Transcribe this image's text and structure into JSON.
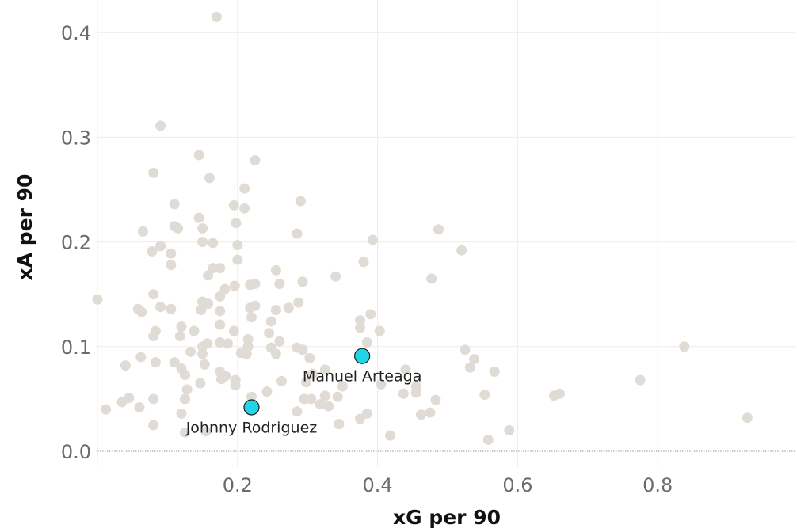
{
  "chart_data": {
    "type": "scatter",
    "xlabel": "xG per 90",
    "ylabel": "xA per 90",
    "xlim": [
      0.0,
      0.98
    ],
    "ylim": [
      -0.015,
      0.43
    ],
    "x_ticks": [
      {
        "value": 0.2,
        "label": "0.2"
      },
      {
        "value": 0.4,
        "label": "0.4"
      },
      {
        "value": 0.6,
        "label": "0.6"
      },
      {
        "value": 0.8,
        "label": "0.8"
      }
    ],
    "y_ticks": [
      {
        "value": 0.0,
        "label": "0.0"
      },
      {
        "value": 0.1,
        "label": "0.1"
      },
      {
        "value": 0.2,
        "label": "0.2"
      },
      {
        "value": 0.3,
        "label": "0.3"
      },
      {
        "value": 0.4,
        "label": "0.4"
      }
    ],
    "grid": true,
    "zero_line": true,
    "colors": {
      "background_points": "#e0dbd5",
      "highlight": "#1fd5e6",
      "highlight_outline": "#1a1a1a",
      "grid": "#ececec"
    },
    "background_points": [
      [
        0.17,
        0.415
      ],
      [
        0.09,
        0.311
      ],
      [
        0.145,
        0.283
      ],
      [
        0.225,
        0.278
      ],
      [
        0.08,
        0.266
      ],
      [
        0.16,
        0.261
      ],
      [
        0.21,
        0.251
      ],
      [
        0.29,
        0.239
      ],
      [
        0.11,
        0.236
      ],
      [
        0.195,
        0.235
      ],
      [
        0.21,
        0.232
      ],
      [
        0.145,
        0.223
      ],
      [
        0.198,
        0.218
      ],
      [
        0.11,
        0.215
      ],
      [
        0.15,
        0.213
      ],
      [
        0.115,
        0.213
      ],
      [
        0.065,
        0.21
      ],
      [
        0.285,
        0.208
      ],
      [
        0.15,
        0.2
      ],
      [
        0.165,
        0.199
      ],
      [
        0.09,
        0.196
      ],
      [
        0.2,
        0.197
      ],
      [
        0.078,
        0.191
      ],
      [
        0.105,
        0.189
      ],
      [
        0.105,
        0.178
      ],
      [
        0.2,
        0.183
      ],
      [
        0.165,
        0.175
      ],
      [
        0.175,
        0.175
      ],
      [
        0.158,
        0.168
      ],
      [
        0.255,
        0.173
      ],
      [
        0.34,
        0.167
      ],
      [
        0.26,
        0.16
      ],
      [
        0.293,
        0.162
      ],
      [
        0.218,
        0.159
      ],
      [
        0.225,
        0.16
      ],
      [
        0.196,
        0.158
      ],
      [
        0.182,
        0.155
      ],
      [
        0.175,
        0.148
      ],
      [
        0.08,
        0.15
      ],
      [
        0.15,
        0.143
      ],
      [
        0.158,
        0.141
      ],
      [
        0.287,
        0.142
      ],
      [
        0.273,
        0.137
      ],
      [
        0.225,
        0.139
      ],
      [
        0.218,
        0.137
      ],
      [
        0.255,
        0.135
      ],
      [
        0.175,
        0.134
      ],
      [
        0.058,
        0.136
      ],
      [
        0.063,
        0.133
      ],
      [
        0.09,
        0.138
      ],
      [
        0.105,
        0.136
      ],
      [
        0.0,
        0.145
      ],
      [
        0.148,
        0.135
      ],
      [
        0.248,
        0.124
      ],
      [
        0.22,
        0.128
      ],
      [
        0.195,
        0.115
      ],
      [
        0.175,
        0.121
      ],
      [
        0.083,
        0.115
      ],
      [
        0.12,
        0.119
      ],
      [
        0.245,
        0.113
      ],
      [
        0.138,
        0.115
      ],
      [
        0.118,
        0.11
      ],
      [
        0.08,
        0.11
      ],
      [
        0.215,
        0.107
      ],
      [
        0.26,
        0.105
      ],
      [
        0.186,
        0.103
      ],
      [
        0.157,
        0.103
      ],
      [
        0.175,
        0.104
      ],
      [
        0.15,
        0.1
      ],
      [
        0.215,
        0.1
      ],
      [
        0.248,
        0.099
      ],
      [
        0.285,
        0.099
      ],
      [
        0.293,
        0.097
      ],
      [
        0.133,
        0.095
      ],
      [
        0.205,
        0.094
      ],
      [
        0.213,
        0.093
      ],
      [
        0.255,
        0.093
      ],
      [
        0.15,
        0.093
      ],
      [
        0.303,
        0.089
      ],
      [
        0.062,
        0.09
      ],
      [
        0.083,
        0.085
      ],
      [
        0.11,
        0.085
      ],
      [
        0.153,
        0.083
      ],
      [
        0.12,
        0.079
      ],
      [
        0.04,
        0.082
      ],
      [
        0.175,
        0.076
      ],
      [
        0.125,
        0.073
      ],
      [
        0.183,
        0.072
      ],
      [
        0.177,
        0.069
      ],
      [
        0.197,
        0.068
      ],
      [
        0.147,
        0.065
      ],
      [
        0.263,
        0.067
      ],
      [
        0.197,
        0.063
      ],
      [
        0.242,
        0.057
      ],
      [
        0.128,
        0.059
      ],
      [
        0.22,
        0.052
      ],
      [
        0.045,
        0.051
      ],
      [
        0.08,
        0.05
      ],
      [
        0.125,
        0.05
      ],
      [
        0.295,
        0.05
      ],
      [
        0.305,
        0.05
      ],
      [
        0.035,
        0.047
      ],
      [
        0.06,
        0.042
      ],
      [
        0.012,
        0.04
      ],
      [
        0.285,
        0.038
      ],
      [
        0.12,
        0.036
      ],
      [
        0.08,
        0.025
      ],
      [
        0.125,
        0.018
      ],
      [
        0.155,
        0.019
      ],
      [
        0.375,
        0.125
      ],
      [
        0.375,
        0.118
      ],
      [
        0.38,
        0.181
      ],
      [
        0.393,
        0.202
      ],
      [
        0.39,
        0.131
      ],
      [
        0.403,
        0.115
      ],
      [
        0.487,
        0.212
      ],
      [
        0.52,
        0.192
      ],
      [
        0.477,
        0.165
      ],
      [
        0.525,
        0.097
      ],
      [
        0.538,
        0.088
      ],
      [
        0.532,
        0.08
      ],
      [
        0.567,
        0.076
      ],
      [
        0.553,
        0.054
      ],
      [
        0.385,
        0.104
      ],
      [
        0.44,
        0.078
      ],
      [
        0.455,
        0.062
      ],
      [
        0.405,
        0.064
      ],
      [
        0.437,
        0.055
      ],
      [
        0.35,
        0.062
      ],
      [
        0.325,
        0.053
      ],
      [
        0.343,
        0.052
      ],
      [
        0.307,
        0.074
      ],
      [
        0.298,
        0.066
      ],
      [
        0.325,
        0.078
      ],
      [
        0.318,
        0.045
      ],
      [
        0.33,
        0.043
      ],
      [
        0.345,
        0.026
      ],
      [
        0.375,
        0.031
      ],
      [
        0.385,
        0.036
      ],
      [
        0.455,
        0.056
      ],
      [
        0.462,
        0.035
      ],
      [
        0.475,
        0.037
      ],
      [
        0.483,
        0.049
      ],
      [
        0.418,
        0.015
      ],
      [
        0.558,
        0.011
      ],
      [
        0.588,
        0.02
      ],
      [
        0.652,
        0.053
      ],
      [
        0.66,
        0.055
      ],
      [
        0.775,
        0.068
      ],
      [
        0.838,
        0.1
      ],
      [
        0.928,
        0.032
      ]
    ],
    "highlight_points": [
      {
        "name": "Manuel Arteaga",
        "x": 0.378,
        "y": 0.091,
        "label_position": "below"
      },
      {
        "name": "Johnny Rodriguez",
        "x": 0.22,
        "y": 0.042,
        "label_position": "below"
      }
    ]
  }
}
